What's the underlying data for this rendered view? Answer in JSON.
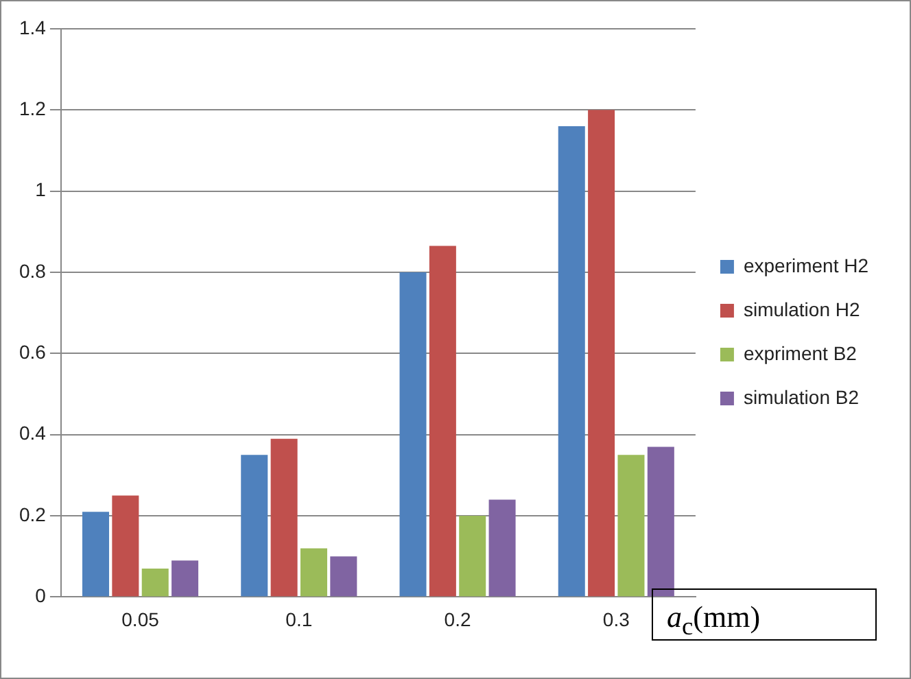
{
  "chart_data": {
    "type": "bar",
    "categories": [
      "0.05",
      "0.1",
      "0.2",
      "0.3"
    ],
    "series": [
      {
        "name": "experiment H2",
        "color": "#4f81bd",
        "values": [
          0.21,
          0.35,
          0.8,
          1.16
        ]
      },
      {
        "name": "simulation H2",
        "color": "#c0504d",
        "values": [
          0.25,
          0.39,
          0.865,
          1.2
        ]
      },
      {
        "name": "expriment B2",
        "color": "#9bbb59",
        "values": [
          0.07,
          0.12,
          0.2,
          0.35
        ]
      },
      {
        "name": "simulation B2",
        "color": "#8064a2",
        "values": [
          0.09,
          0.1,
          0.24,
          0.37
        ]
      }
    ],
    "xlabel": "a$_{c}$(mm)",
    "ylim": [
      0,
      1.4
    ],
    "yticks": [
      0,
      0.2,
      0.4,
      0.6,
      0.8,
      1,
      1.2,
      1.4
    ],
    "grid": "y",
    "legend": "right"
  }
}
